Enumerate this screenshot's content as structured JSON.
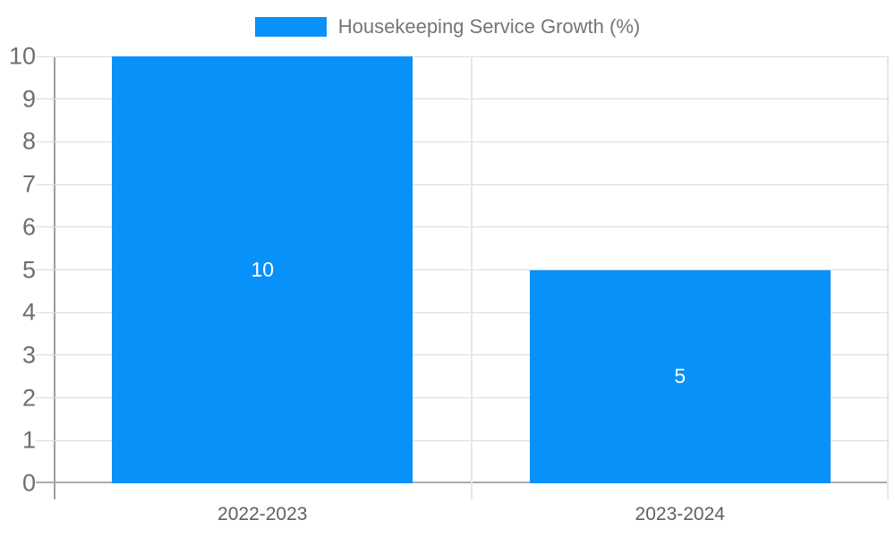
{
  "chart_data": {
    "type": "bar",
    "title": "",
    "legend_position": "top",
    "categories": [
      "2022-2023",
      "2023-2024"
    ],
    "series": [
      {
        "name": "Housekeeping Service Growth (%)",
        "values": [
          10,
          5
        ]
      }
    ],
    "data_labels": [
      "10",
      "5"
    ],
    "xlabel": "",
    "ylabel": "",
    "ylim": [
      0,
      10
    ],
    "yticks": [
      0,
      1,
      2,
      3,
      4,
      5,
      6,
      7,
      8,
      9,
      10
    ],
    "grid": true,
    "bar_width_fraction": 0.72,
    "colors": {
      "bar": "#0891f8",
      "grid": "#dcdcdc",
      "separator": "#e6e6e6",
      "axis_y": "#9e9e9e",
      "axis_x": "#ababab",
      "tick_text": "#6e6e6e",
      "category_text": "#616161",
      "legend_text": "#757575",
      "bar_label_text": "#ffffff",
      "background": "#ffffff"
    }
  }
}
